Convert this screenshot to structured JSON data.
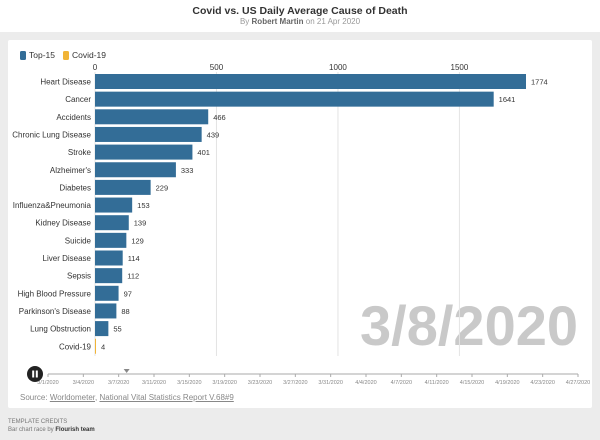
{
  "header": {
    "title": "Covid vs. US Daily Average Cause of Death",
    "by": "By",
    "author": "Robert Martin",
    "date_text": "on 21 Apr 2020"
  },
  "legend": [
    {
      "label": "Top-15",
      "color": "#336d97"
    },
    {
      "label": "Covid-19",
      "color": "#f1b437"
    }
  ],
  "chart_data": {
    "type": "bar",
    "orientation": "horizontal",
    "title": "Covid vs. US Daily Average Cause of Death",
    "current_date": "3/8/2020",
    "xlim": [
      0,
      1774
    ],
    "x_ticks": [
      0,
      500,
      1000,
      1500
    ],
    "categories": [
      "Heart Disease",
      "Cancer",
      "Accidents",
      "Chronic Lung Disease",
      "Stroke",
      "Alzheimer's",
      "Diabetes",
      "Influenza&Pneumonia",
      "Kidney Disease",
      "Suicide",
      "Liver Disease",
      "Sepsis",
      "High Blood Pressure",
      "Parkinson's Disease",
      "Lung Obstruction",
      "Covid-19"
    ],
    "values": [
      1774,
      1641,
      466,
      439,
      401,
      333,
      229,
      153,
      139,
      129,
      114,
      112,
      97,
      88,
      55,
      4
    ],
    "groups": [
      "Top-15",
      "Top-15",
      "Top-15",
      "Top-15",
      "Top-15",
      "Top-15",
      "Top-15",
      "Top-15",
      "Top-15",
      "Top-15",
      "Top-15",
      "Top-15",
      "Top-15",
      "Top-15",
      "Top-15",
      "Covid-19"
    ]
  },
  "timeline": {
    "dates": [
      "3/1/2020",
      "3/4/2020",
      "3/7/2020",
      "3/11/2020",
      "3/15/2020",
      "3/19/2020",
      "3/23/2020",
      "3/27/2020",
      "3/31/2020",
      "4/4/2020",
      "4/7/2020",
      "4/11/2020",
      "4/15/2020",
      "4/19/2020",
      "4/23/2020",
      "4/27/2020"
    ],
    "current_index": 2,
    "play_icon": "pause-icon"
  },
  "source": {
    "prefix": "Source:",
    "link1": "Worldometer",
    "sep": ",",
    "link2": "National Vital Statistics Report V.68#9"
  },
  "credits": {
    "line1": "TEMPLATE CREDITS",
    "line2_prefix": "Bar chart race by",
    "line2_team": "Flourish team"
  }
}
